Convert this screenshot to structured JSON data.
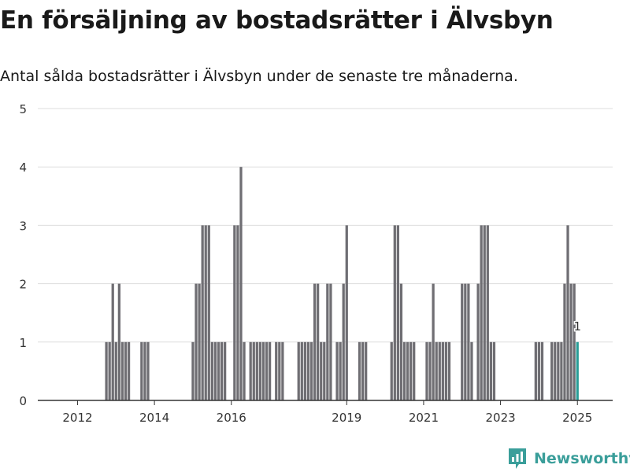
{
  "header": {
    "title": "En försäljning av bostadsrätter i Älvsbyn",
    "subtitle": "Antal sålda bostadsrätter i Älvsbyn under de senaste tre månaderna."
  },
  "brand": {
    "name": "Newsworthy",
    "color": "#3a9e9a",
    "icon": "newsworthy-logo-icon"
  },
  "colors": {
    "bar": "#6f6e73",
    "highlight": "#2a9d97",
    "grid": "#dddddd",
    "axis": "#333333"
  },
  "chart_data": {
    "type": "bar",
    "title": "En försäljning av bostadsrätter i Älvsbyn",
    "subtitle": "Antal sålda bostadsrätter i Älvsbyn under de senaste tre månaderna.",
    "xlabel": "",
    "ylabel": "",
    "x_range": [
      "2011-01",
      "2025-12"
    ],
    "ylim": [
      0,
      5
    ],
    "yticks": [
      0,
      1,
      2,
      3,
      4,
      5
    ],
    "xticks": [
      {
        "label": "2012",
        "x": "2012-01"
      },
      {
        "label": "2014",
        "x": "2014-01"
      },
      {
        "label": "2016",
        "x": "2016-01"
      },
      {
        "label": "2019",
        "x": "2019-01"
      },
      {
        "label": "2021",
        "x": "2021-01"
      },
      {
        "label": "2023",
        "x": "2023-01"
      },
      {
        "label": "2025",
        "x": "2025-01"
      }
    ],
    "grid": true,
    "series": [
      {
        "x": [
          "2012-10",
          "2012-11",
          "2012-12",
          "2013-01",
          "2013-02",
          "2013-03",
          "2013-04",
          "2013-05",
          "2013-09",
          "2013-10",
          "2013-11",
          "2015-01",
          "2015-02",
          "2015-03",
          "2015-04",
          "2015-05",
          "2015-06",
          "2015-07",
          "2015-08",
          "2015-09",
          "2015-10",
          "2015-11",
          "2016-02",
          "2016-03",
          "2016-04",
          "2016-05",
          "2016-07",
          "2016-08",
          "2016-09",
          "2016-10",
          "2016-11",
          "2016-12",
          "2017-01",
          "2017-03",
          "2017-04",
          "2017-05",
          "2017-10",
          "2017-11",
          "2017-12",
          "2018-01",
          "2018-02",
          "2018-03",
          "2018-04",
          "2018-05",
          "2018-06",
          "2018-07",
          "2018-08",
          "2018-10",
          "2018-11",
          "2018-12",
          "2019-01",
          "2019-05",
          "2019-06",
          "2019-07",
          "2020-03",
          "2020-04",
          "2020-05",
          "2020-06",
          "2020-07",
          "2020-08",
          "2020-09",
          "2020-10",
          "2021-02",
          "2021-03",
          "2021-04",
          "2021-05",
          "2021-06",
          "2021-07",
          "2021-08",
          "2021-09",
          "2022-01",
          "2022-02",
          "2022-03",
          "2022-04",
          "2022-06",
          "2022-07",
          "2022-08",
          "2022-09",
          "2022-10",
          "2022-11",
          "2023-12",
          "2024-01",
          "2024-02",
          "2024-05",
          "2024-06",
          "2024-07",
          "2024-08",
          "2024-09",
          "2024-10",
          "2024-11",
          "2024-12"
        ],
        "values": [
          1,
          1,
          2,
          1,
          2,
          1,
          1,
          1,
          1,
          1,
          1,
          1,
          2,
          2,
          3,
          3,
          3,
          1,
          1,
          1,
          1,
          1,
          3,
          3,
          4,
          1,
          1,
          1,
          1,
          1,
          1,
          1,
          1,
          1,
          1,
          1,
          1,
          1,
          1,
          1,
          1,
          2,
          2,
          1,
          1,
          2,
          2,
          1,
          1,
          2,
          3,
          1,
          1,
          1,
          1,
          3,
          3,
          2,
          1,
          1,
          1,
          1,
          1,
          1,
          2,
          1,
          1,
          1,
          1,
          1,
          2,
          2,
          2,
          1,
          2,
          3,
          3,
          3,
          1,
          1,
          1,
          1,
          1,
          1,
          1,
          1,
          1,
          2,
          3,
          2,
          2
        ]
      }
    ],
    "highlight": {
      "x": "2025-01",
      "value": 1,
      "label": "1"
    }
  }
}
